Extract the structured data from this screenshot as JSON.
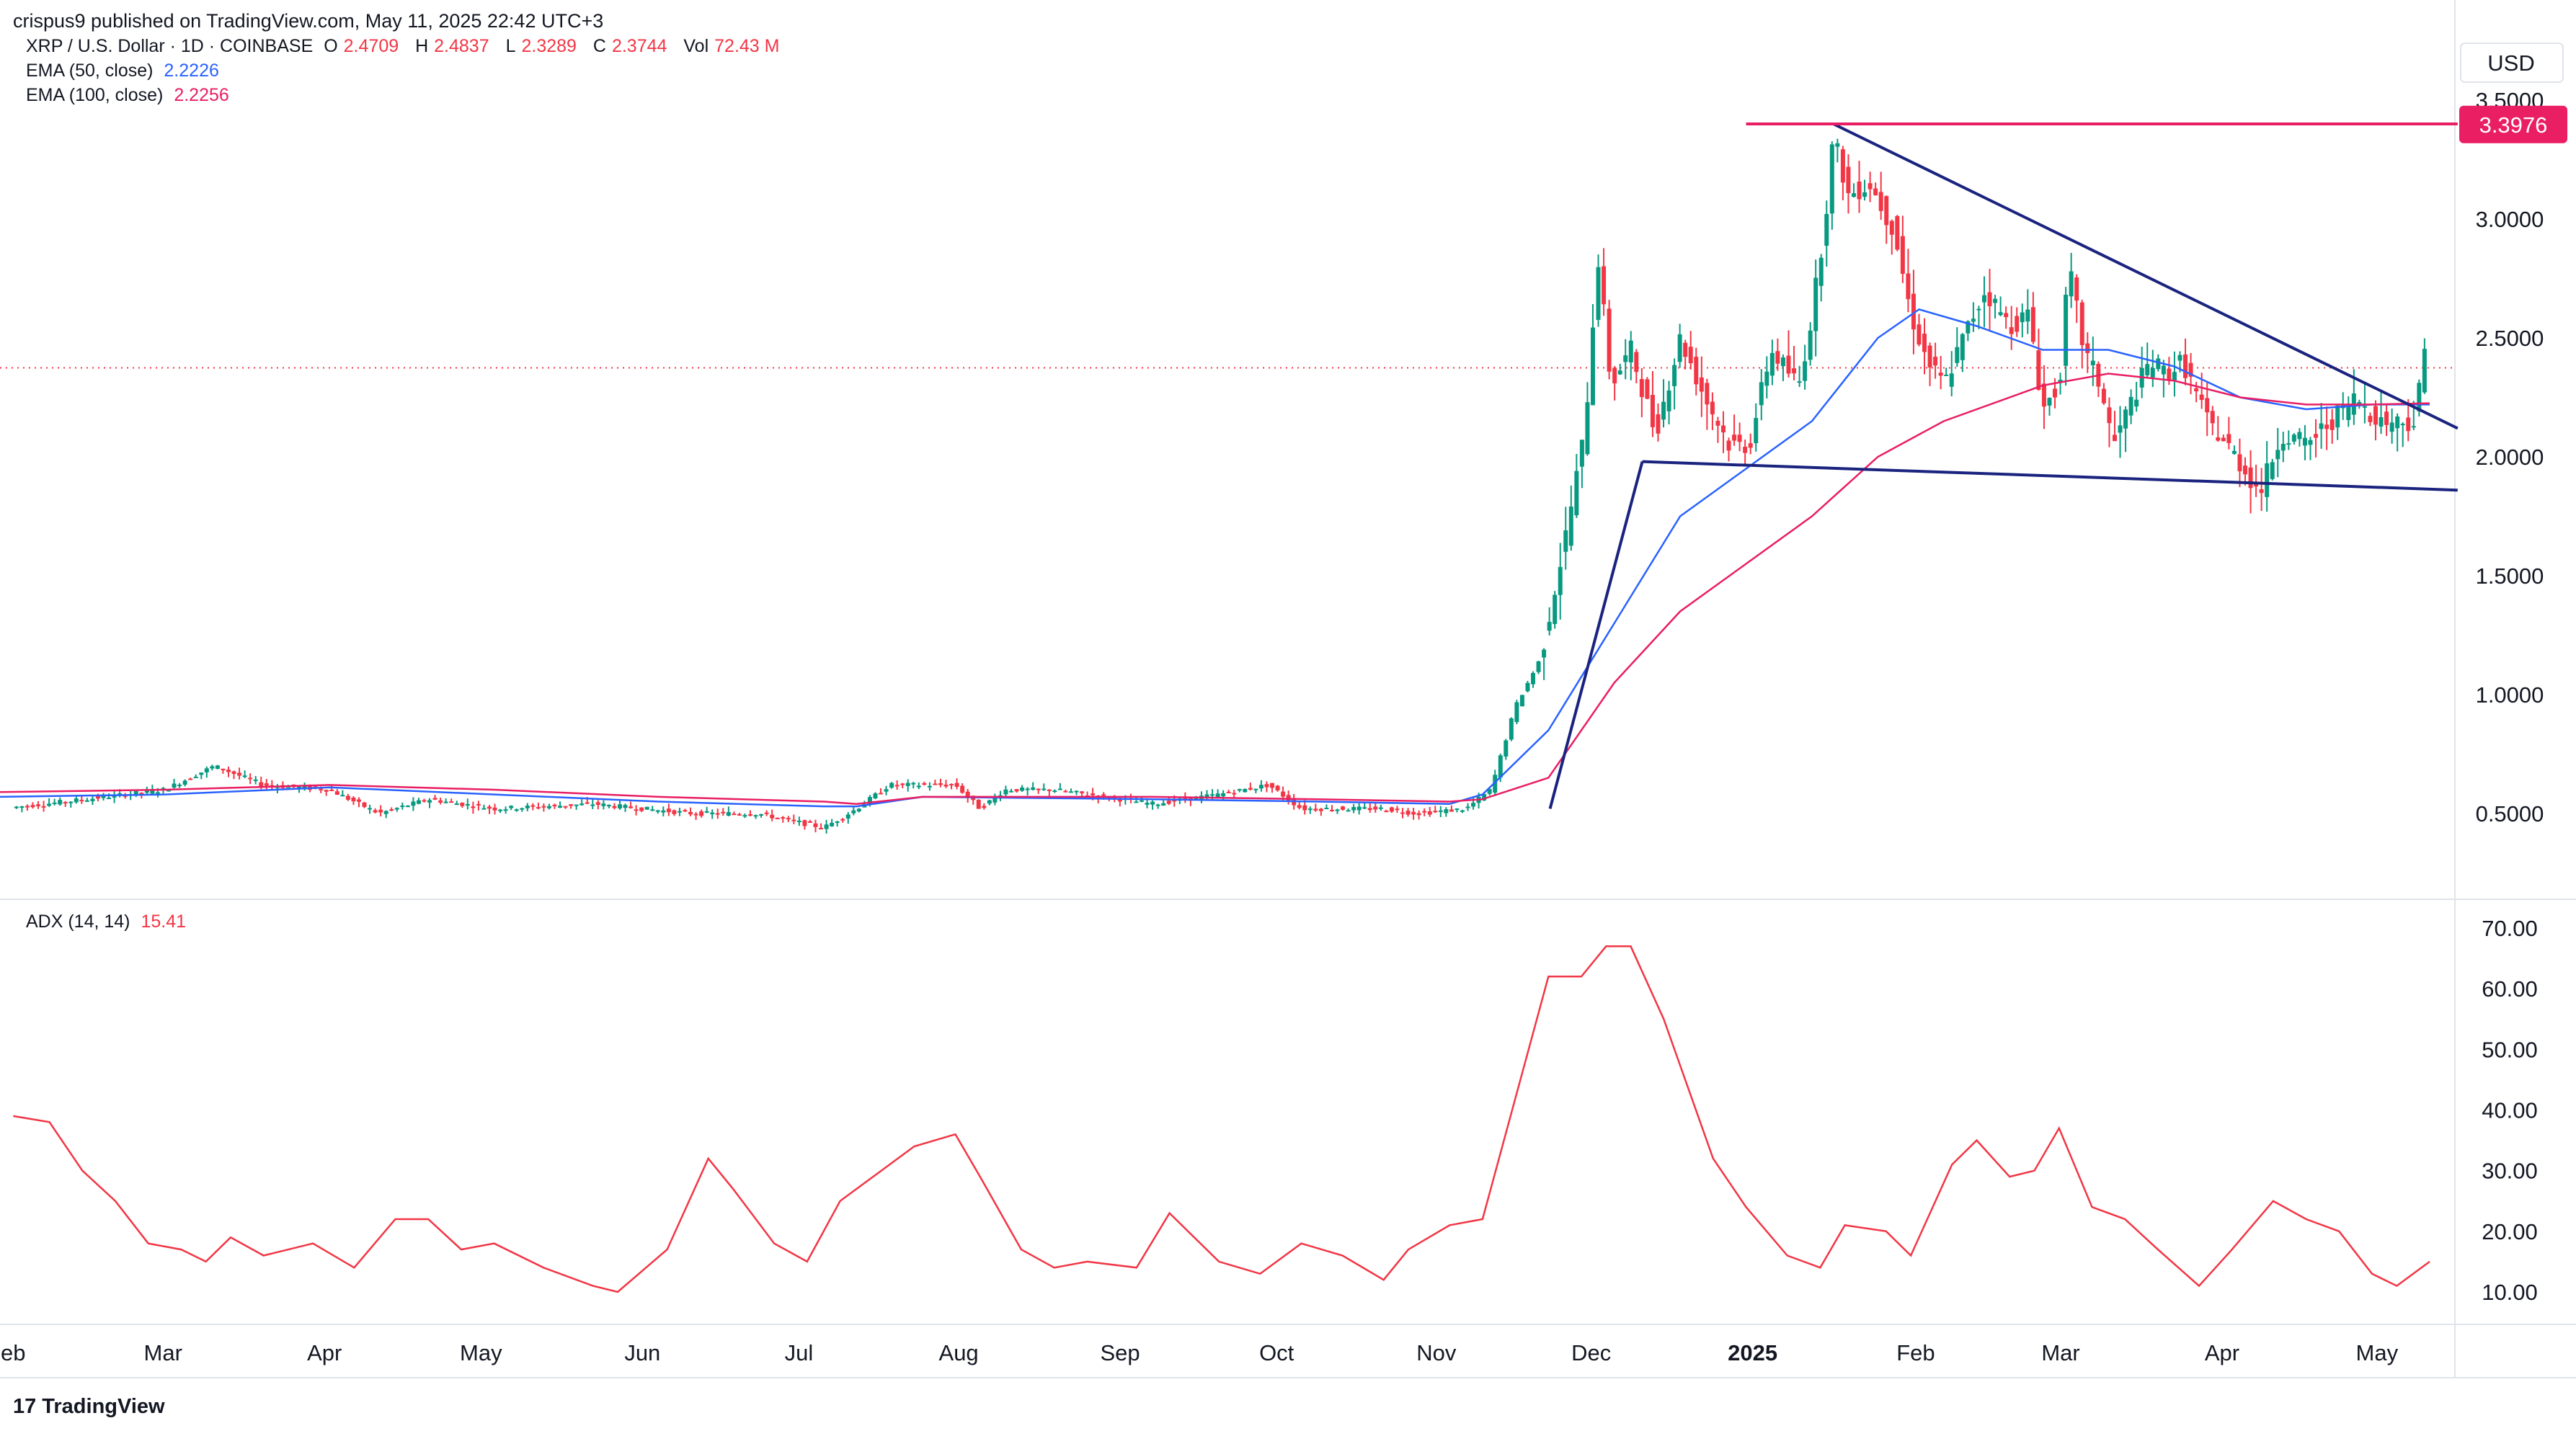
{
  "header": {
    "published": "crispus9 published on TradingView.com, May 11, 2025 22:42 UTC+3"
  },
  "legend": {
    "symbol": "XRP / U.S. Dollar · 1D · COINBASE",
    "ohlc": [
      {
        "key": "O",
        "value": "2.4709"
      },
      {
        "key": "H",
        "value": "2.4837"
      },
      {
        "key": "L",
        "value": "2.3289"
      },
      {
        "key": "C",
        "value": "2.3744"
      },
      {
        "key": "Vol",
        "value": "72.43 M"
      }
    ],
    "ema50": {
      "label": "EMA (50, close)",
      "value": "2.2226",
      "color": "#2962ff"
    },
    "ema100": {
      "label": "EMA (100, close)",
      "value": "2.2256",
      "color": "#e91e63"
    },
    "adx": {
      "label": "ADX (14, 14)",
      "value": "15.41",
      "color": "#f23645"
    }
  },
  "currency": "USD",
  "price_badge": {
    "value": "3.3976",
    "color": "#e91e63"
  },
  "footer": {
    "brand": "TradingView"
  },
  "chart_data": [
    {
      "type": "candlestick",
      "title": "XRP / U.S. Dollar · 1D · COINBASE",
      "y_ticks": [
        "3.5000",
        "3.0000",
        "2.5000",
        "2.0000",
        "1.5000",
        "1.0000",
        "0.5000"
      ],
      "ylim": [
        0.18,
        3.6
      ],
      "x_ticks": [
        "eb",
        "Mar",
        "Apr",
        "May",
        "Jun",
        "Jul",
        "Aug",
        "Sep",
        "Oct",
        "Nov",
        "Dec",
        "2025",
        "Feb",
        "Mar",
        "Apr",
        "May"
      ],
      "last_close": 2.3744,
      "resistance": 3.3976,
      "series": [
        {
          "name": "EMA (50, close)",
          "color": "#2962ff",
          "points": [
            [
              0,
              0.57
            ],
            [
              100,
              0.58
            ],
            [
              200,
              0.61
            ],
            [
              300,
              0.58
            ],
            [
              400,
              0.55
            ],
            [
              500,
              0.53
            ],
            [
              520,
              0.53
            ],
            [
              560,
              0.57
            ],
            [
              700,
              0.56
            ],
            [
              800,
              0.55
            ],
            [
              880,
              0.54
            ],
            [
              900,
              0.58
            ],
            [
              940,
              0.85
            ],
            [
              980,
              1.3
            ],
            [
              1020,
              1.75
            ],
            [
              1060,
              1.95
            ],
            [
              1100,
              2.15
            ],
            [
              1140,
              2.5
            ],
            [
              1165,
              2.62
            ],
            [
              1200,
              2.55
            ],
            [
              1240,
              2.45
            ],
            [
              1280,
              2.45
            ],
            [
              1320,
              2.38
            ],
            [
              1360,
              2.25
            ],
            [
              1400,
              2.2
            ],
            [
              1440,
              2.22
            ],
            [
              1475,
              2.22
            ]
          ]
        },
        {
          "name": "EMA (100, close)",
          "color": "#e91e63",
          "points": [
            [
              0,
              0.59
            ],
            [
              100,
              0.6
            ],
            [
              200,
              0.62
            ],
            [
              300,
              0.6
            ],
            [
              400,
              0.57
            ],
            [
              500,
              0.55
            ],
            [
              520,
              0.54
            ],
            [
              560,
              0.57
            ],
            [
              700,
              0.57
            ],
            [
              800,
              0.56
            ],
            [
              880,
              0.55
            ],
            [
              900,
              0.56
            ],
            [
              940,
              0.65
            ],
            [
              980,
              1.05
            ],
            [
              1020,
              1.35
            ],
            [
              1060,
              1.55
            ],
            [
              1100,
              1.75
            ],
            [
              1140,
              2.0
            ],
            [
              1180,
              2.15
            ],
            [
              1240,
              2.3
            ],
            [
              1280,
              2.35
            ],
            [
              1320,
              2.32
            ],
            [
              1360,
              2.25
            ],
            [
              1400,
              2.22
            ],
            [
              1440,
              2.22
            ],
            [
              1475,
              2.2256
            ]
          ]
        }
      ],
      "trendlines": [
        {
          "name": "descending-resistance",
          "points": [
            [
              1113,
              3.4
            ],
            [
              1492,
              2.12
            ]
          ],
          "color": "#1a237e"
        },
        {
          "name": "horizontal-resistance",
          "points": [
            [
              1060,
              3.4
            ],
            [
              1492,
              3.4
            ]
          ],
          "color": "#e91e63"
        },
        {
          "name": "lower-support",
          "points": [
            [
              997,
              1.98
            ],
            [
              1492,
              1.86
            ]
          ],
          "color": "#1a237e"
        },
        {
          "name": "rally-line",
          "points": [
            [
              941,
              0.52
            ],
            [
              997,
              1.98
            ]
          ],
          "color": "#1a237e"
        }
      ]
    },
    {
      "type": "line",
      "title": "ADX (14, 14)",
      "y_ticks": [
        "70.00",
        "60.00",
        "50.00",
        "40.00",
        "30.00",
        "20.00",
        "10.00"
      ],
      "ylim": [
        5,
        73
      ],
      "series": [
        {
          "name": "ADX (14, 14)",
          "color": "#f23645",
          "points": [
            [
              8,
              39
            ],
            [
              30,
              38
            ],
            [
              50,
              30
            ],
            [
              70,
              25
            ],
            [
              90,
              18
            ],
            [
              110,
              17
            ],
            [
              125,
              15
            ],
            [
              140,
              19
            ],
            [
              160,
              16
            ],
            [
              190,
              18
            ],
            [
              215,
              14
            ],
            [
              240,
              22
            ],
            [
              260,
              22
            ],
            [
              280,
              17
            ],
            [
              300,
              18
            ],
            [
              330,
              14
            ],
            [
              360,
              11
            ],
            [
              375,
              10
            ],
            [
              405,
              17
            ],
            [
              430,
              32
            ],
            [
              445,
              27
            ],
            [
              470,
              18
            ],
            [
              490,
              15
            ],
            [
              510,
              25
            ],
            [
              535,
              30
            ],
            [
              555,
              34
            ],
            [
              580,
              36
            ],
            [
              595,
              29
            ],
            [
              620,
              17
            ],
            [
              640,
              14
            ],
            [
              660,
              15
            ],
            [
              690,
              14
            ],
            [
              710,
              23
            ],
            [
              740,
              15
            ],
            [
              765,
              13
            ],
            [
              790,
              18
            ],
            [
              815,
              16
            ],
            [
              840,
              12
            ],
            [
              855,
              17
            ],
            [
              880,
              21
            ],
            [
              900,
              22
            ],
            [
              920,
              42
            ],
            [
              940,
              62
            ],
            [
              960,
              62
            ],
            [
              975,
              67
            ],
            [
              990,
              67
            ],
            [
              1010,
              55
            ],
            [
              1040,
              32
            ],
            [
              1060,
              24
            ],
            [
              1085,
              16
            ],
            [
              1105,
              14
            ],
            [
              1120,
              21
            ],
            [
              1145,
              20
            ],
            [
              1160,
              16
            ],
            [
              1185,
              31
            ],
            [
              1200,
              35
            ],
            [
              1220,
              29
            ],
            [
              1235,
              30
            ],
            [
              1250,
              37
            ],
            [
              1270,
              24
            ],
            [
              1290,
              22
            ],
            [
              1310,
              17
            ],
            [
              1335,
              11
            ],
            [
              1355,
              17
            ],
            [
              1380,
              25
            ],
            [
              1400,
              22
            ],
            [
              1420,
              20
            ],
            [
              1440,
              13
            ],
            [
              1455,
              11
            ],
            [
              1475,
              15
            ]
          ]
        }
      ]
    }
  ]
}
